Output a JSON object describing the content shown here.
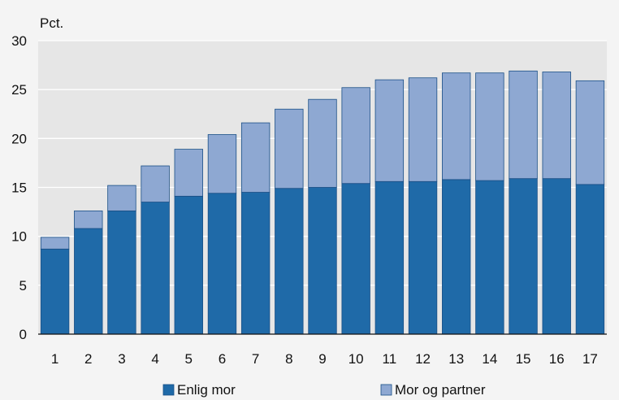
{
  "chart_data": {
    "type": "bar",
    "stacked": true,
    "ylabel": "Pct.",
    "ylim": [
      0,
      30
    ],
    "yticks": [
      0,
      5,
      10,
      15,
      20,
      25,
      30
    ],
    "grid": true,
    "legend_placement": "bottom",
    "categories": [
      "1",
      "2",
      "3",
      "4",
      "5",
      "6",
      "7",
      "8",
      "9",
      "10",
      "11",
      "12",
      "13",
      "14",
      "15",
      "16",
      "17"
    ],
    "series": [
      {
        "name": "Enlig mor",
        "color": "#1f6aa8",
        "values": [
          8.7,
          10.8,
          12.6,
          13.5,
          14.1,
          14.4,
          14.5,
          14.9,
          15.0,
          15.4,
          15.6,
          15.6,
          15.8,
          15.7,
          15.9,
          15.9,
          15.3
        ]
      },
      {
        "name": "Mor og partner",
        "color": "#8ea8d2",
        "values": [
          1.2,
          1.8,
          2.6,
          3.7,
          4.8,
          6.0,
          7.1,
          8.1,
          9.0,
          9.8,
          10.4,
          10.6,
          10.9,
          11.0,
          11.0,
          10.9,
          10.6
        ]
      }
    ]
  }
}
